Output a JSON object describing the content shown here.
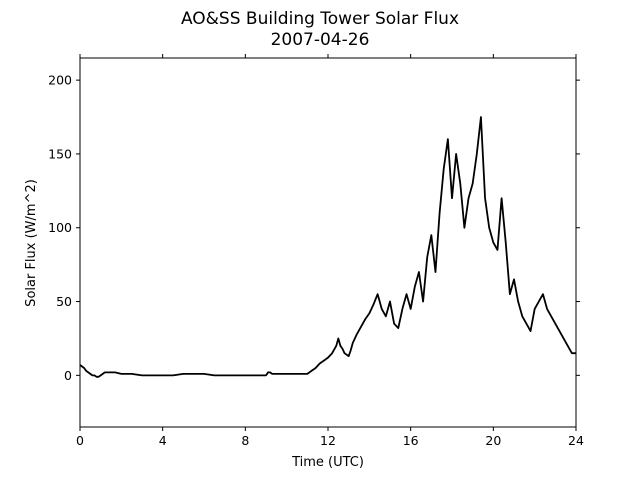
{
  "chart_data": {
    "type": "line",
    "title": "AO&SS Building Tower Solar Flux",
    "subtitle": "2007-04-26",
    "xlabel": "Time (UTC)",
    "ylabel": "Solar Flux (W/m^2)",
    "xlim": [
      0,
      24
    ],
    "ylim": [
      -35,
      215
    ],
    "xticks": [
      0,
      4,
      8,
      12,
      16,
      20,
      24
    ],
    "yticks": [
      0,
      50,
      100,
      150,
      200
    ],
    "grid": false,
    "legend": "none",
    "line_color": "#000000",
    "series": [
      {
        "x": [
          0,
          0.1,
          0.2,
          0.3,
          0.4,
          0.5,
          0.6,
          0.7,
          0.8,
          0.9,
          1.0,
          1.1,
          1.2,
          1.3,
          1.4,
          1.5,
          1.7,
          2.0,
          2.5,
          3.0,
          3.5,
          4.0,
          4.5,
          5.0,
          5.5,
          6.0,
          6.5,
          7.0,
          7.5,
          8.0,
          8.5,
          9.0,
          9.1,
          9.2,
          9.3,
          9.5,
          10.0,
          10.5,
          10.8,
          11.0,
          11.2,
          11.4,
          11.6,
          11.8,
          12.0,
          12.2,
          12.4,
          12.5,
          12.6,
          12.7,
          12.8,
          13.0,
          13.1,
          13.2,
          13.4,
          13.6,
          13.8,
          14.0,
          14.2,
          14.4,
          14.6,
          14.8,
          15.0,
          15.2,
          15.4,
          15.6,
          15.8,
          16.0,
          16.2,
          16.4,
          16.6,
          16.8,
          17.0,
          17.2,
          17.4,
          17.6,
          17.8,
          18.0,
          18.2,
          18.4,
          18.6,
          18.8,
          19.0,
          19.2,
          19.4,
          19.6,
          19.8,
          20.0,
          20.2,
          20.4,
          20.6,
          20.8,
          21.0,
          21.2,
          21.4,
          21.6,
          21.8,
          22.0,
          22.2,
          22.4,
          22.6,
          22.8,
          23.0,
          23.2,
          23.4,
          23.6,
          23.8,
          24.0
        ],
        "y": [
          7,
          6,
          5,
          3,
          2,
          1,
          0,
          0,
          -1,
          -1,
          0,
          1,
          2,
          2,
          2,
          2,
          2,
          1,
          1,
          0,
          0,
          0,
          0,
          1,
          1,
          1,
          0,
          0,
          0,
          0,
          0,
          0,
          2,
          2,
          1,
          1,
          1,
          1,
          1,
          1,
          3,
          5,
          8,
          10,
          12,
          15,
          20,
          25,
          20,
          18,
          15,
          13,
          17,
          22,
          28,
          33,
          38,
          42,
          48,
          55,
          45,
          40,
          50,
          35,
          32,
          45,
          55,
          45,
          60,
          70,
          50,
          80,
          95,
          70,
          110,
          140,
          160,
          120,
          150,
          130,
          100,
          120,
          130,
          150,
          175,
          120,
          100,
          90,
          85,
          120,
          90,
          55,
          65,
          50,
          40,
          35,
          30,
          45,
          50,
          55,
          45,
          40,
          35,
          30,
          25,
          20,
          15,
          15
        ]
      }
    ]
  }
}
